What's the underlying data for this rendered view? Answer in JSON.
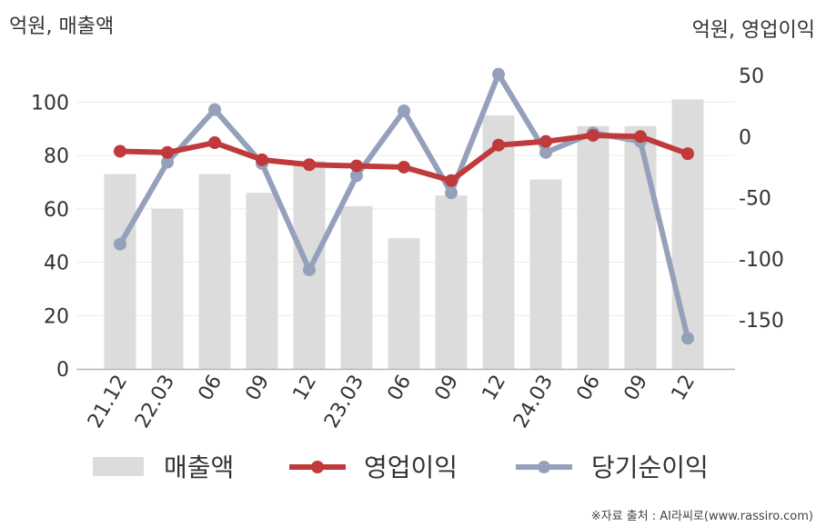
{
  "chart_data": {
    "type": "bar+line",
    "categories": [
      "21.12",
      "22.03",
      "06",
      "09",
      "12",
      "23.03",
      "06",
      "09",
      "12",
      "24.03",
      "06",
      "09",
      "12"
    ],
    "left_axis": {
      "label": "억원, 매출액",
      "ylim": [
        0,
        110
      ],
      "ticks": [
        0,
        20,
        40,
        60,
        80,
        100
      ]
    },
    "right_axis": {
      "label": "억원, 영업이익",
      "ylim": [
        -190,
        50
      ],
      "ticks": [
        50,
        0,
        -50,
        -100,
        -150
      ]
    },
    "grid": true,
    "legend_position": "bottom",
    "series": [
      {
        "name": "매출액",
        "type": "bar",
        "axis": "left",
        "color": "#dcdcdc",
        "values": [
          73,
          60,
          73,
          66,
          78,
          61,
          49,
          65,
          95,
          71,
          91,
          91,
          101
        ]
      },
      {
        "name": "영업이익",
        "type": "line",
        "axis": "right",
        "color": "#c0393b",
        "values": [
          -12,
          -13,
          -5,
          -19,
          -23,
          -24,
          -25,
          -36,
          -7,
          -4,
          1,
          0,
          -14
        ]
      },
      {
        "name": "당기순이익",
        "type": "line",
        "axis": "right",
        "color": "#95a1bb",
        "values": [
          -88,
          -21,
          22,
          -22,
          -109,
          -32,
          21,
          -46,
          51,
          -13,
          3,
          -4,
          -165
        ]
      }
    ],
    "source": "※자료 출처 : AI라씨로(www.rassiro.com)"
  }
}
